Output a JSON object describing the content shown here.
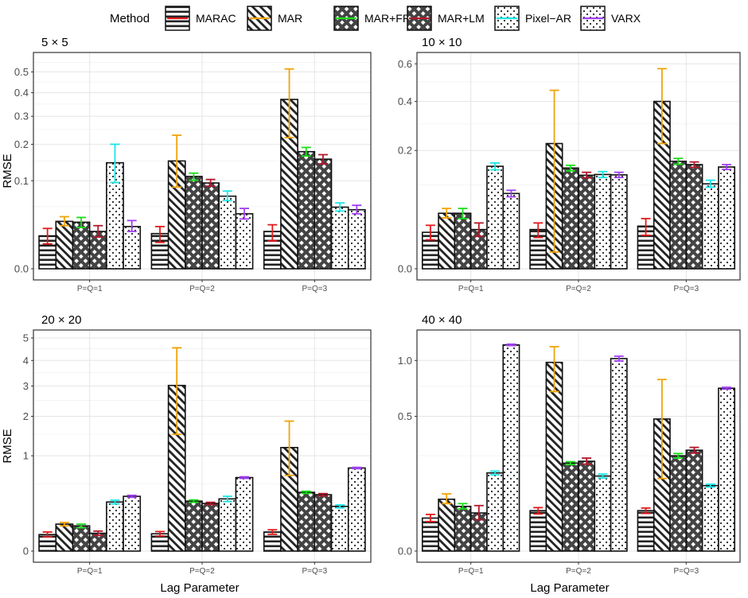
{
  "legend": {
    "title": "Method",
    "methods": [
      {
        "name": "MARAC",
        "color": "#e41a1c",
        "pattern": "horizontal"
      },
      {
        "name": "MAR",
        "color": "#f0a30a",
        "pattern": "diagonal"
      },
      {
        "name": "MAR+FRC",
        "color": "#1adf1a",
        "pattern": "crosshatch"
      },
      {
        "name": "MAR+LM",
        "color": "#b2182b",
        "pattern": "crosshatch"
      },
      {
        "name": "Pixel−AR",
        "color": "#1ae6e6",
        "pattern": "dots"
      },
      {
        "name": "VARX",
        "color": "#a040f0",
        "pattern": "dots"
      }
    ]
  },
  "x_axis_label": "Lag Parameter",
  "y_axis_label": "RMSE",
  "chart_data": [
    {
      "type": "bar",
      "title": "5 × 5",
      "ylabel": "RMSE",
      "scale": "sqrt",
      "ylim": [
        0,
        0.56
      ],
      "yticks": [
        0.0,
        0.1,
        0.2,
        0.3,
        0.4,
        0.5
      ],
      "ytick_labels": [
        "0.0",
        "0.1",
        "0.2",
        "0.3",
        "0.4",
        "0.5"
      ],
      "categories": [
        "P=Q=1",
        "P=Q=2",
        "P=Q=3"
      ],
      "series": [
        {
          "name": "MARAC",
          "values": [
            0.014,
            0.016,
            0.018
          ],
          "lower": [
            0.008,
            0.009,
            0.01
          ],
          "upper": [
            0.021,
            0.023,
            0.025
          ]
        },
        {
          "name": "MAR",
          "values": [
            0.029,
            0.15,
            0.37
          ],
          "lower": [
            0.024,
            0.086,
            0.222
          ],
          "upper": [
            0.035,
            0.23,
            0.515
          ]
        },
        {
          "name": "MAR+FRC",
          "values": [
            0.028,
            0.11,
            0.177
          ],
          "lower": [
            0.022,
            0.101,
            0.164
          ],
          "upper": [
            0.034,
            0.118,
            0.19
          ]
        },
        {
          "name": "MAR+LM",
          "values": [
            0.018,
            0.095,
            0.155
          ],
          "lower": [
            0.013,
            0.088,
            0.142
          ],
          "upper": [
            0.024,
            0.103,
            0.168
          ]
        },
        {
          "name": "Pixel−AR",
          "values": [
            0.145,
            0.068,
            0.049
          ],
          "lower": [
            0.096,
            0.06,
            0.043
          ],
          "upper": [
            0.2,
            0.078,
            0.056
          ]
        },
        {
          "name": "VARX",
          "values": [
            0.023,
            0.039,
            0.045
          ],
          "lower": [
            0.018,
            0.032,
            0.039
          ],
          "upper": [
            0.03,
            0.047,
            0.052
          ]
        }
      ]
    },
    {
      "type": "bar",
      "title": "10 × 10",
      "ylabel": "",
      "scale": "sqrt",
      "ylim": [
        0,
        0.62
      ],
      "yticks": [
        0.0,
        0.2,
        0.4,
        0.6
      ],
      "ytick_labels": [
        "0.0",
        "0.2",
        "0.4",
        "0.6"
      ],
      "categories": [
        "P=Q=1",
        "P=Q=2",
        "P=Q=3"
      ],
      "series": [
        {
          "name": "MARAC",
          "values": [
            0.019,
            0.022,
            0.026
          ],
          "lower": [
            0.012,
            0.014,
            0.016
          ],
          "upper": [
            0.027,
            0.03,
            0.036
          ]
        },
        {
          "name": "MAR",
          "values": [
            0.044,
            0.224,
            0.4
          ],
          "lower": [
            0.037,
            0.004,
            0.224
          ],
          "upper": [
            0.052,
            0.455,
            0.572
          ]
        },
        {
          "name": "MAR+FRC",
          "values": [
            0.044,
            0.145,
            0.165
          ],
          "lower": [
            0.036,
            0.137,
            0.156
          ],
          "upper": [
            0.052,
            0.153,
            0.174
          ]
        },
        {
          "name": "MAR+LM",
          "values": [
            0.022,
            0.125,
            0.155
          ],
          "lower": [
            0.015,
            0.118,
            0.147
          ],
          "upper": [
            0.03,
            0.133,
            0.163
          ]
        },
        {
          "name": "Pixel−AR",
          "values": [
            0.15,
            0.127,
            0.103
          ],
          "lower": [
            0.14,
            0.119,
            0.095
          ],
          "upper": [
            0.16,
            0.135,
            0.112
          ]
        },
        {
          "name": "VARX",
          "values": [
            0.081,
            0.126,
            0.148
          ],
          "lower": [
            0.074,
            0.119,
            0.141
          ],
          "upper": [
            0.088,
            0.133,
            0.155
          ]
        }
      ]
    },
    {
      "type": "bar",
      "title": "20 × 20",
      "ylabel": "RMSE",
      "scale": "sqrt",
      "ylim": [
        0,
        5.0
      ],
      "yticks": [
        0,
        1,
        2,
        3,
        4,
        5
      ],
      "ytick_labels": [
        "0",
        "1",
        "2",
        "3",
        "4",
        "5"
      ],
      "categories": [
        "P=Q=1",
        "P=Q=2",
        "P=Q=3"
      ],
      "series": [
        {
          "name": "MARAC",
          "values": [
            0.03,
            0.033,
            0.04
          ],
          "lower": [
            0.022,
            0.025,
            0.031
          ],
          "upper": [
            0.04,
            0.042,
            0.05
          ]
        },
        {
          "name": "MAR",
          "values": [
            0.08,
            3.02,
            1.18
          ],
          "lower": [
            0.07,
            1.5,
            0.63
          ],
          "upper": [
            0.09,
            4.55,
            1.86
          ]
        },
        {
          "name": "MAR+FRC",
          "values": [
            0.07,
            0.275,
            0.38
          ],
          "lower": [
            0.06,
            0.262,
            0.366
          ],
          "upper": [
            0.08,
            0.288,
            0.394
          ]
        },
        {
          "name": "MAR+LM",
          "values": [
            0.035,
            0.25,
            0.35
          ],
          "lower": [
            0.027,
            0.238,
            0.336
          ],
          "upper": [
            0.044,
            0.262,
            0.364
          ]
        },
        {
          "name": "Pixel−AR",
          "values": [
            0.265,
            0.3,
            0.22
          ],
          "lower": [
            0.245,
            0.27,
            0.205
          ],
          "upper": [
            0.285,
            0.33,
            0.235
          ]
        },
        {
          "name": "VARX",
          "values": [
            0.33,
            0.595,
            0.76
          ],
          "lower": [
            0.318,
            0.582,
            0.748
          ],
          "upper": [
            0.342,
            0.608,
            0.772
          ]
        }
      ]
    },
    {
      "type": "bar",
      "title": "40 × 40",
      "ylabel": "",
      "scale": "sqrt",
      "ylim": [
        0,
        1.25
      ],
      "yticks": [
        0.0,
        0.5,
        1.0
      ],
      "ytick_labels": [
        "0.0",
        "0.5",
        "1.0"
      ],
      "categories": [
        "P=Q=1",
        "P=Q=2",
        "P=Q=3"
      ],
      "series": [
        {
          "name": "MARAC",
          "values": [
            0.03,
            0.045,
            0.045
          ],
          "lower": [
            0.024,
            0.038,
            0.039
          ],
          "upper": [
            0.037,
            0.052,
            0.051
          ]
        },
        {
          "name": "MAR",
          "values": [
            0.074,
            0.98,
            0.48
          ],
          "lower": [
            0.062,
            0.7,
            0.145
          ],
          "upper": [
            0.09,
            1.15,
            0.81
          ]
        },
        {
          "name": "MAR+FRC",
          "values": [
            0.055,
            0.213,
            0.25
          ],
          "lower": [
            0.049,
            0.206,
            0.238
          ],
          "upper": [
            0.062,
            0.22,
            0.262
          ]
        },
        {
          "name": "MAR+LM",
          "values": [
            0.04,
            0.222,
            0.28
          ],
          "lower": [
            0.027,
            0.208,
            0.264
          ],
          "upper": [
            0.057,
            0.238,
            0.296
          ]
        },
        {
          "name": "Pixel−AR",
          "values": [
            0.168,
            0.155,
            0.118
          ],
          "lower": [
            0.16,
            0.147,
            0.113
          ],
          "upper": [
            0.176,
            0.163,
            0.123
          ]
        },
        {
          "name": "VARX",
          "values": [
            1.17,
            1.02,
            0.73
          ],
          "lower": [
            1.162,
            0.995,
            0.722
          ],
          "upper": [
            1.178,
            1.045,
            0.738
          ]
        }
      ]
    }
  ]
}
